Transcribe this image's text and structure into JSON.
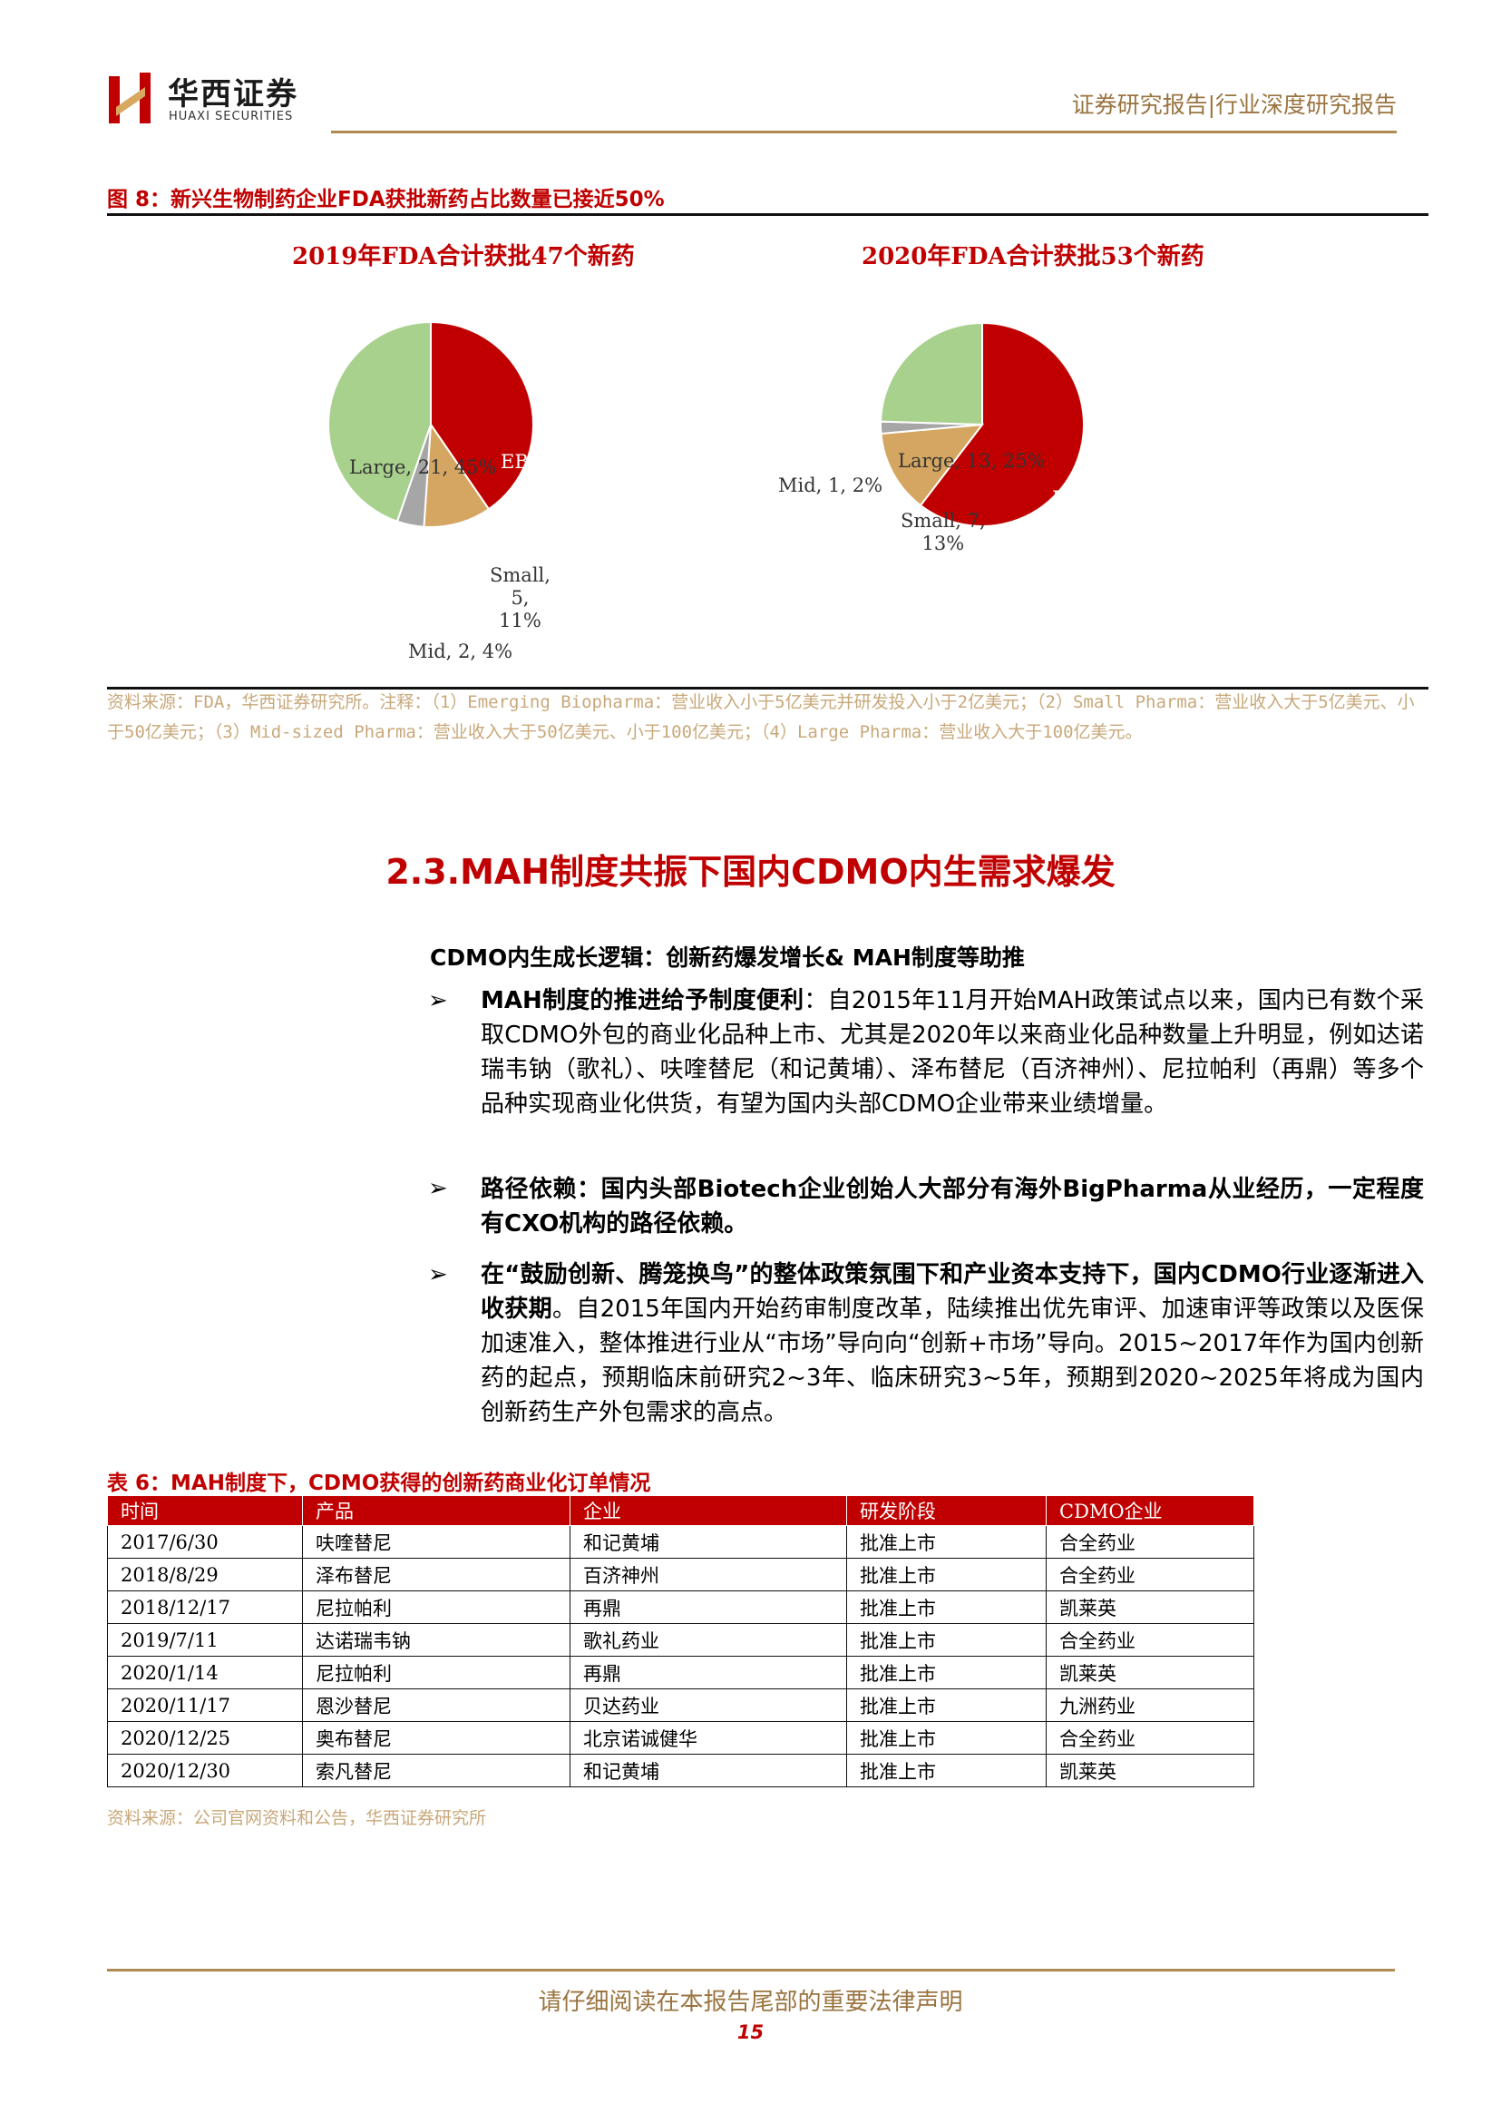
{
  "header": {
    "logo_cn": "华西证券",
    "logo_en": "HUAXI SECURITIES",
    "report_type": "证券研究报告|行业深度研究报告"
  },
  "figure": {
    "title": "图 8：新兴生物制药企业FDA获批新药占比数量已接近50%",
    "source": "资料来源：FDA，华西证券研究所。注释：（1）Emerging Biopharma：营业收入小于5亿美元并研发投入小于2亿美元；（2）Small Pharma：营业收入大于5亿美元、小于50亿美元；（3）Mid-sized Pharma：营业收入大于50亿美元、小于100亿美元；（4）Large Pharma：营业收入大于100亿美元。"
  },
  "chart_data": [
    {
      "type": "pie",
      "title": "2019年FDA合计获批47个新药",
      "slices": [
        {
          "name": "EBP",
          "value": 19,
          "percent": 40,
          "label": "EBP, 19, 40%",
          "color": "#c00000"
        },
        {
          "name": "Small",
          "value": 5,
          "percent": 11,
          "label_lines": [
            "Small,",
            "5,",
            "11%"
          ],
          "color": "#d4a661"
        },
        {
          "name": "Mid",
          "value": 2,
          "percent": 4,
          "label": "Mid, 2, 4%",
          "color": "#a6a6a6"
        },
        {
          "name": "Large",
          "value": 21,
          "percent": 45,
          "label": "Large, 21, 45%",
          "color": "#a9d18e"
        }
      ]
    },
    {
      "type": "pie",
      "title": "2020年FDA合计获批53个新药",
      "slices": [
        {
          "name": "EBP",
          "value": 32,
          "percent": 60,
          "label": "EBP, 32, 60%",
          "color": "#c00000"
        },
        {
          "name": "Small",
          "value": 7,
          "percent": 13,
          "label_lines": [
            "Small, 7,",
            "13%"
          ],
          "color": "#d4a661"
        },
        {
          "name": "Mid",
          "value": 1,
          "percent": 2,
          "label": "Mid, 1, 2%",
          "color": "#a6a6a6"
        },
        {
          "name": "Large",
          "value": 13,
          "percent": 25,
          "label": "Large, 13, 25%",
          "color": "#a9d18e"
        }
      ]
    }
  ],
  "section": {
    "title": "2.3.MAH制度共振下国内CDMO内生需求爆发",
    "sub_heading": "CDMO内生成长逻辑：创新药爆发增长& MAH制度等助推",
    "bullet_mark": "➢",
    "bullets": [
      {
        "lead": "MAH制度的推进给予制度便利",
        "body": "：自2015年11月开始MAH政策试点以来，国内已有数个采取CDMO外包的商业化品种上市、尤其是2020年以来商业化品种数量上升明显，例如达诺瑞韦钠（歌礼）、呋喹替尼（和记黄埔）、泽布替尼（百济神州）、尼拉帕利（再鼎）等多个品种实现商业化供货，有望为国内头部CDMO企业带来业绩增量。"
      },
      {
        "lead": "路径依赖：国内头部Biotech企业创始人大部分有海外BigPharma从业经历，一定程度有CXO机构的路径依赖。",
        "body": ""
      },
      {
        "lead": "在“鼓励创新、腾笼换鸟”的整体政策氛围下和产业资本支持下，国内CDMO行业逐渐进入收获期",
        "body": "。自2015年国内开始药审制度改革，陆续推出优先审评、加速审评等政策以及医保加速准入，整体推进行业从“市场”导向向“创新+市场”导向。2015~2017年作为国内创新药的起点，预期临床前研究2~3年、临床研究3~5年，预期到2020~2025年将成为国内创新药生产外包需求的高点。"
      }
    ]
  },
  "table": {
    "title": "表 6：MAH制度下，CDMO获得的创新药商业化订单情况",
    "headers": [
      "时间",
      "产品",
      "企业",
      "研发阶段",
      "CDMO企业"
    ],
    "rows": [
      [
        "2017/6/30",
        "呋喹替尼",
        "和记黄埔",
        "批准上市",
        "合全药业"
      ],
      [
        "2018/8/29",
        "泽布替尼",
        "百济神州",
        "批准上市",
        "合全药业"
      ],
      [
        "2018/12/17",
        "尼拉帕利",
        "再鼎",
        "批准上市",
        "凯莱英"
      ],
      [
        "2019/7/11",
        "达诺瑞韦钠",
        "歌礼药业",
        "批准上市",
        "合全药业"
      ],
      [
        "2020/1/14",
        "尼拉帕利",
        "再鼎",
        "批准上市",
        "凯莱英"
      ],
      [
        "2020/11/17",
        "恩沙替尼",
        "贝达药业",
        "批准上市",
        "九洲药业"
      ],
      [
        "2020/12/25",
        "奥布替尼",
        "北京诺诚健华",
        "批准上市",
        "合全药业"
      ],
      [
        "2020/12/30",
        "索凡替尼",
        "和记黄埔",
        "批准上市",
        "凯莱英"
      ]
    ],
    "source": "资料来源：公司官网资料和公告，华西证券研究所"
  },
  "footer": {
    "notice": "请仔细阅读在本报告尾部的重要法律声明",
    "page": "15"
  }
}
